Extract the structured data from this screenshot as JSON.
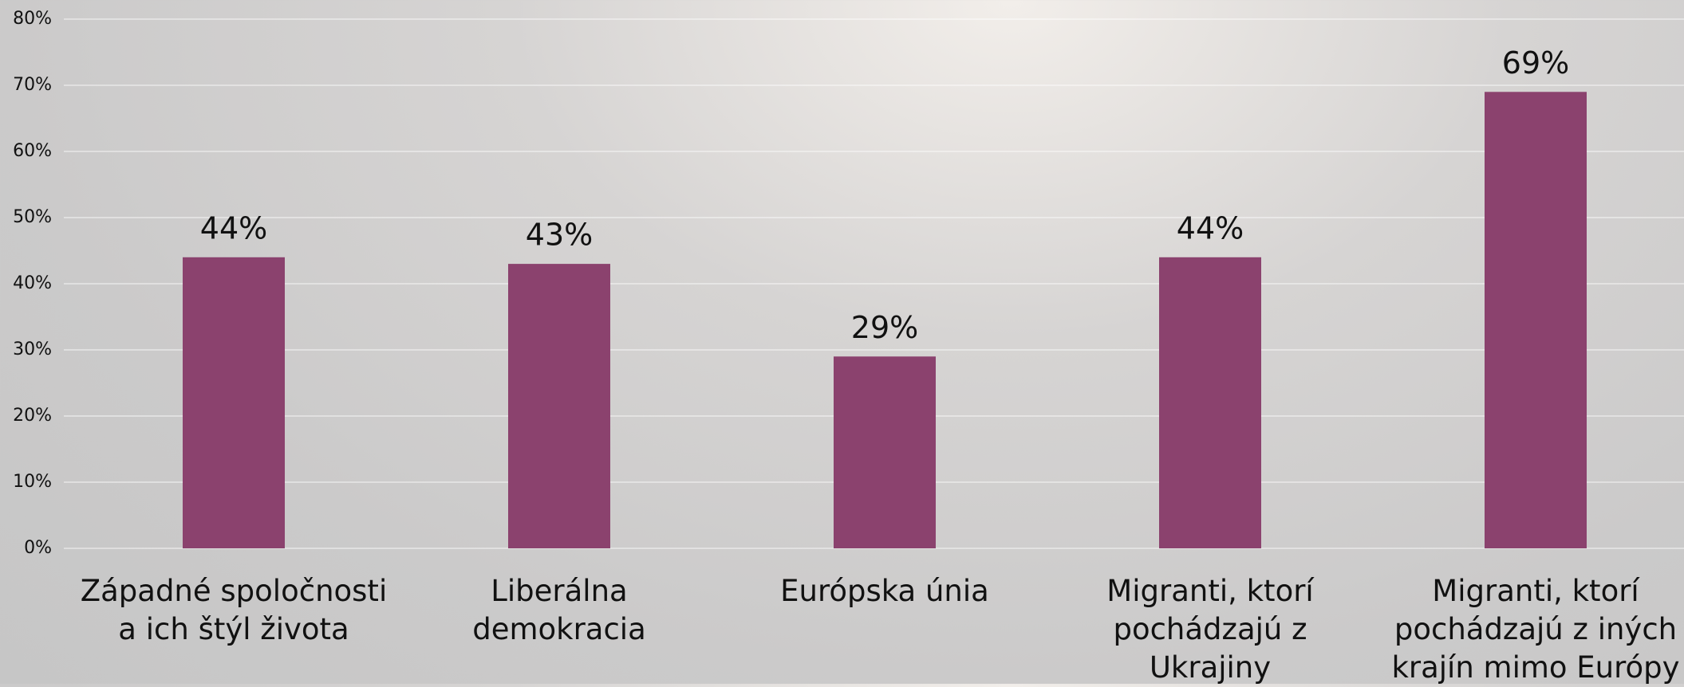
{
  "chart_data": {
    "type": "bar",
    "categories": [
      "Západné spoločnosti a ich štýl života",
      "Liberálna demokracia",
      "Európska únia",
      "Migranti, ktorí pochádzajú z Ukrajiny",
      "Migranti, ktorí pochádzajú z iných krajín mimo Európy"
    ],
    "values": [
      44,
      43,
      29,
      44,
      69
    ],
    "value_labels": [
      "44%",
      "43%",
      "29%",
      "44%",
      "69%"
    ],
    "color": "#8b426e",
    "ylim": [
      0,
      80
    ],
    "yticks": [
      {
        "value": 0,
        "label": "0%"
      },
      {
        "value": 10,
        "label": "10%"
      },
      {
        "value": 20,
        "label": "20%"
      },
      {
        "value": 30,
        "label": "30%"
      },
      {
        "value": 40,
        "label": "40%"
      },
      {
        "value": 50,
        "label": "50%"
      },
      {
        "value": 60,
        "label": "60%"
      },
      {
        "value": 70,
        "label": "70%"
      },
      {
        "value": 80,
        "label": "80%"
      }
    ],
    "grid": true
  }
}
